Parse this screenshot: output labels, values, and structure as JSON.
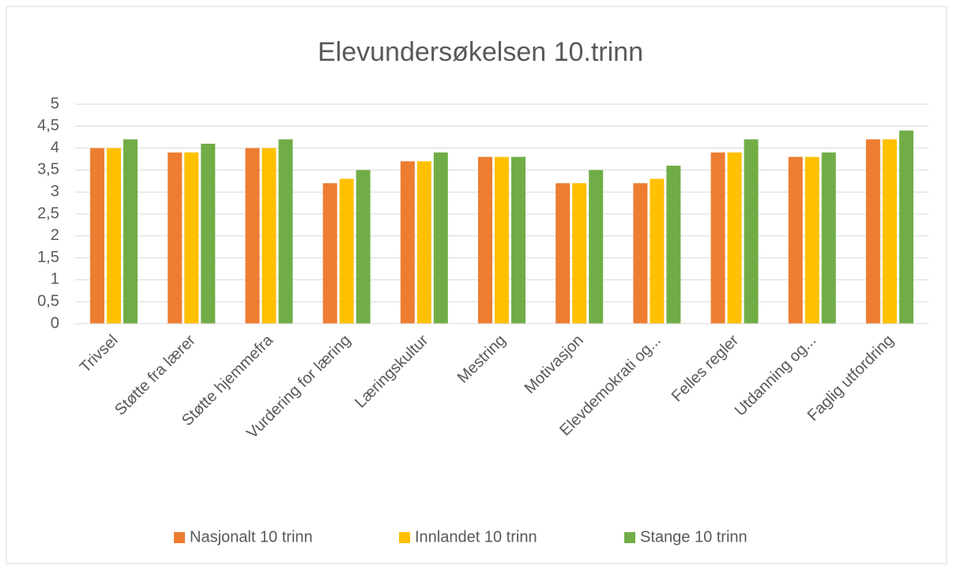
{
  "chart_data": {
    "type": "bar",
    "title": "Elevundersøkelsen 10.trinn",
    "categories": [
      "Trivsel",
      "Støtte fra lærer",
      "Støtte hjemmefra",
      "Vurdering for læring",
      "Læringskultur",
      "Mestring",
      "Motivasjon",
      "Elevdemokrati og...",
      "Felles regler",
      "Utdanning og...",
      "Faglig utfordring"
    ],
    "series": [
      {
        "name": "Nasjonalt 10 trinn",
        "color": "#ed7d31",
        "values": [
          4.0,
          3.9,
          4.0,
          3.2,
          3.7,
          3.8,
          3.2,
          3.2,
          3.9,
          3.8,
          4.2
        ]
      },
      {
        "name": "Innlandet 10 trinn",
        "color": "#ffc000",
        "values": [
          4.0,
          3.9,
          4.0,
          3.3,
          3.7,
          3.8,
          3.2,
          3.3,
          3.9,
          3.8,
          4.2
        ]
      },
      {
        "name": "Stange 10 trinn",
        "color": "#70ad47",
        "values": [
          4.2,
          4.1,
          4.2,
          3.5,
          3.9,
          3.8,
          3.5,
          3.6,
          4.2,
          3.9,
          4.4
        ]
      }
    ],
    "ylim": [
      0,
      5
    ],
    "yticks": [
      0,
      {
        "value": 0.5,
        "label": "0,5"
      },
      1,
      {
        "value": 1.5,
        "label": "1,5"
      },
      2,
      {
        "value": 2.5,
        "label": "2,5"
      },
      3,
      {
        "value": 3.5,
        "label": "3,5"
      },
      4,
      {
        "value": 4.5,
        "label": "4,5"
      },
      5
    ],
    "grid": true,
    "legend": "bottom"
  }
}
